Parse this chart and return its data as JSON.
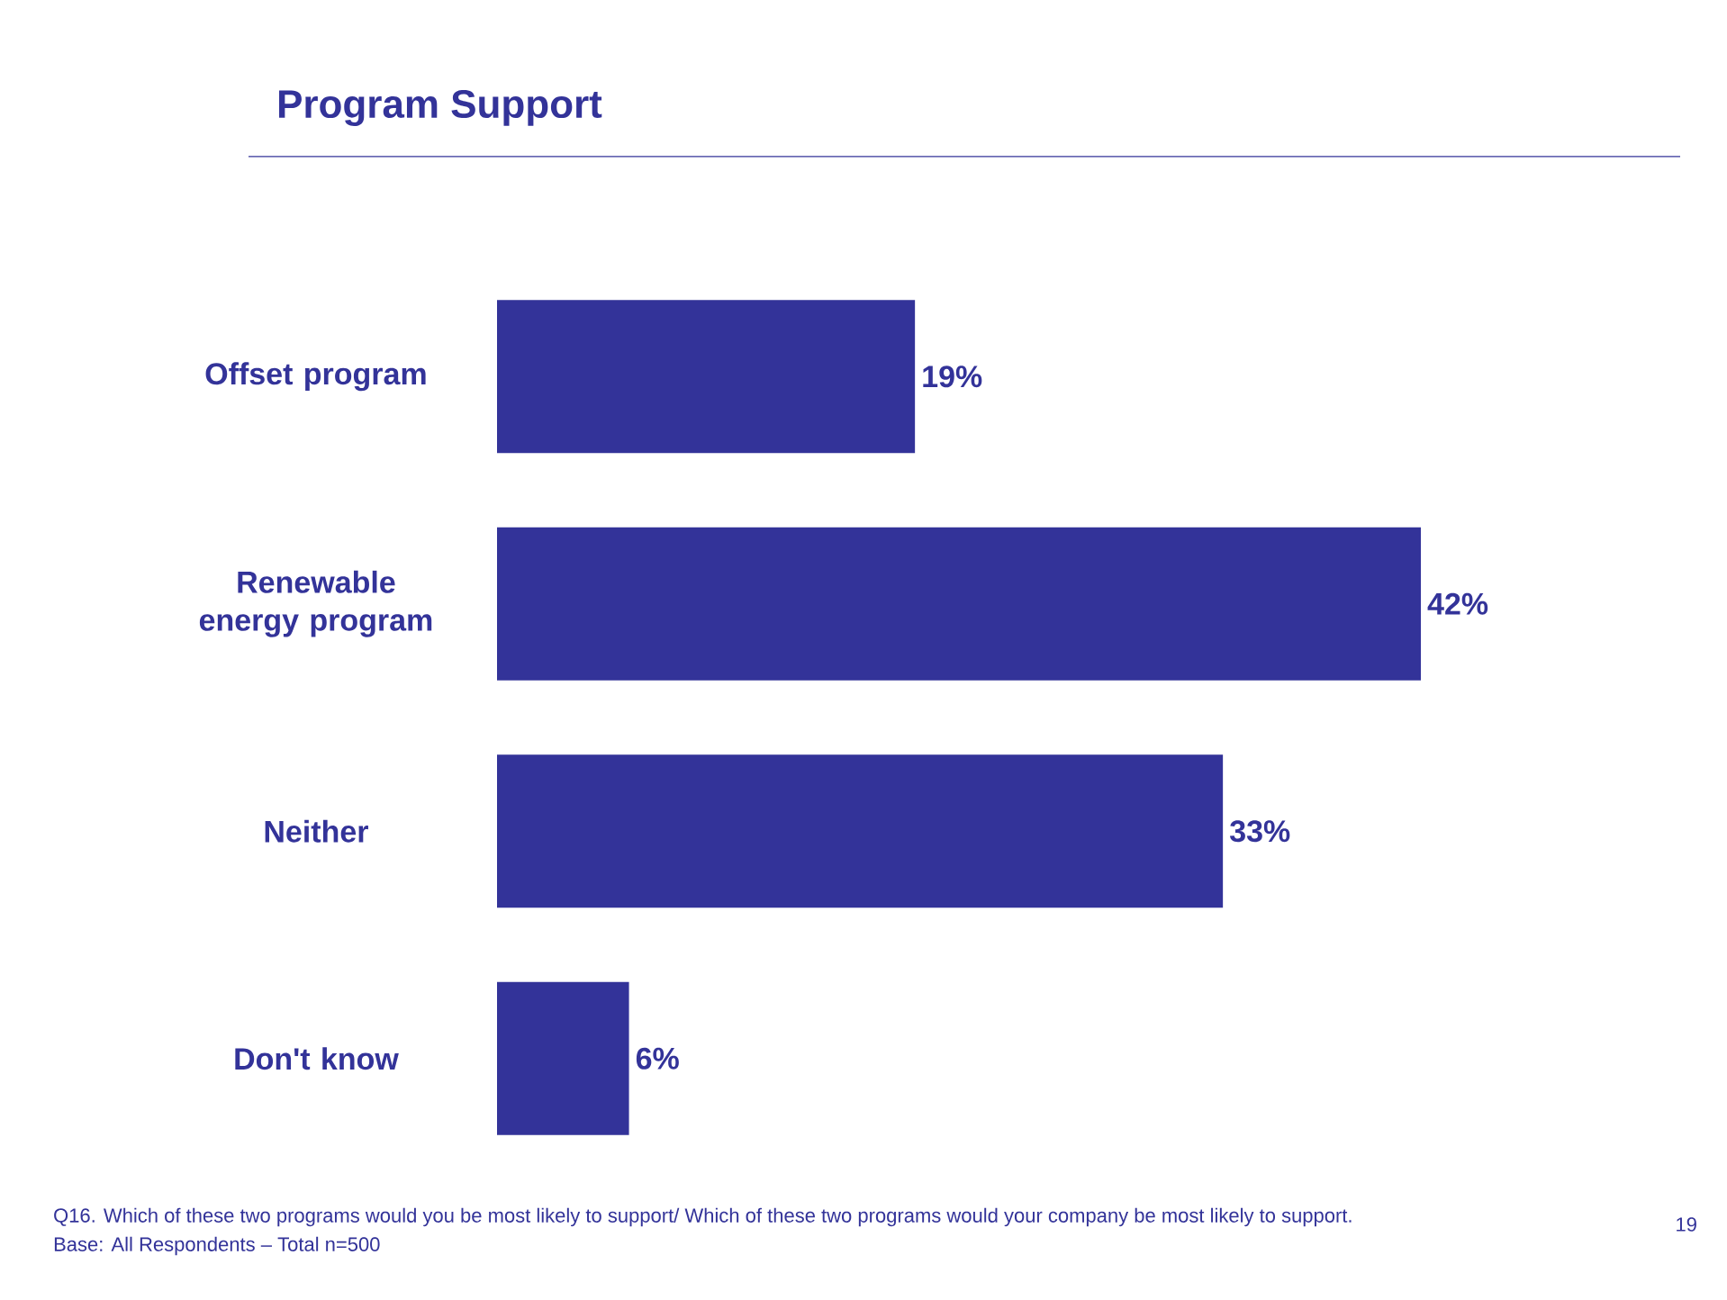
{
  "chart_data": {
    "type": "bar",
    "orientation": "horizontal",
    "title": "Program Support",
    "categories": [
      "Offset program",
      "Renewable energy program",
      "Neither",
      "Don't know"
    ],
    "values": [
      19,
      42,
      33,
      6
    ],
    "color": "#333399",
    "value_labels": [
      "19%",
      "42%",
      "33%",
      "6%"
    ],
    "annotations": [
      "Q16. Which of these two programs would you be most likely to support/ Which of these two programs would your company be most likely to support.",
      "Base:  All Respondents – Total n=500",
      "19"
    ]
  }
}
